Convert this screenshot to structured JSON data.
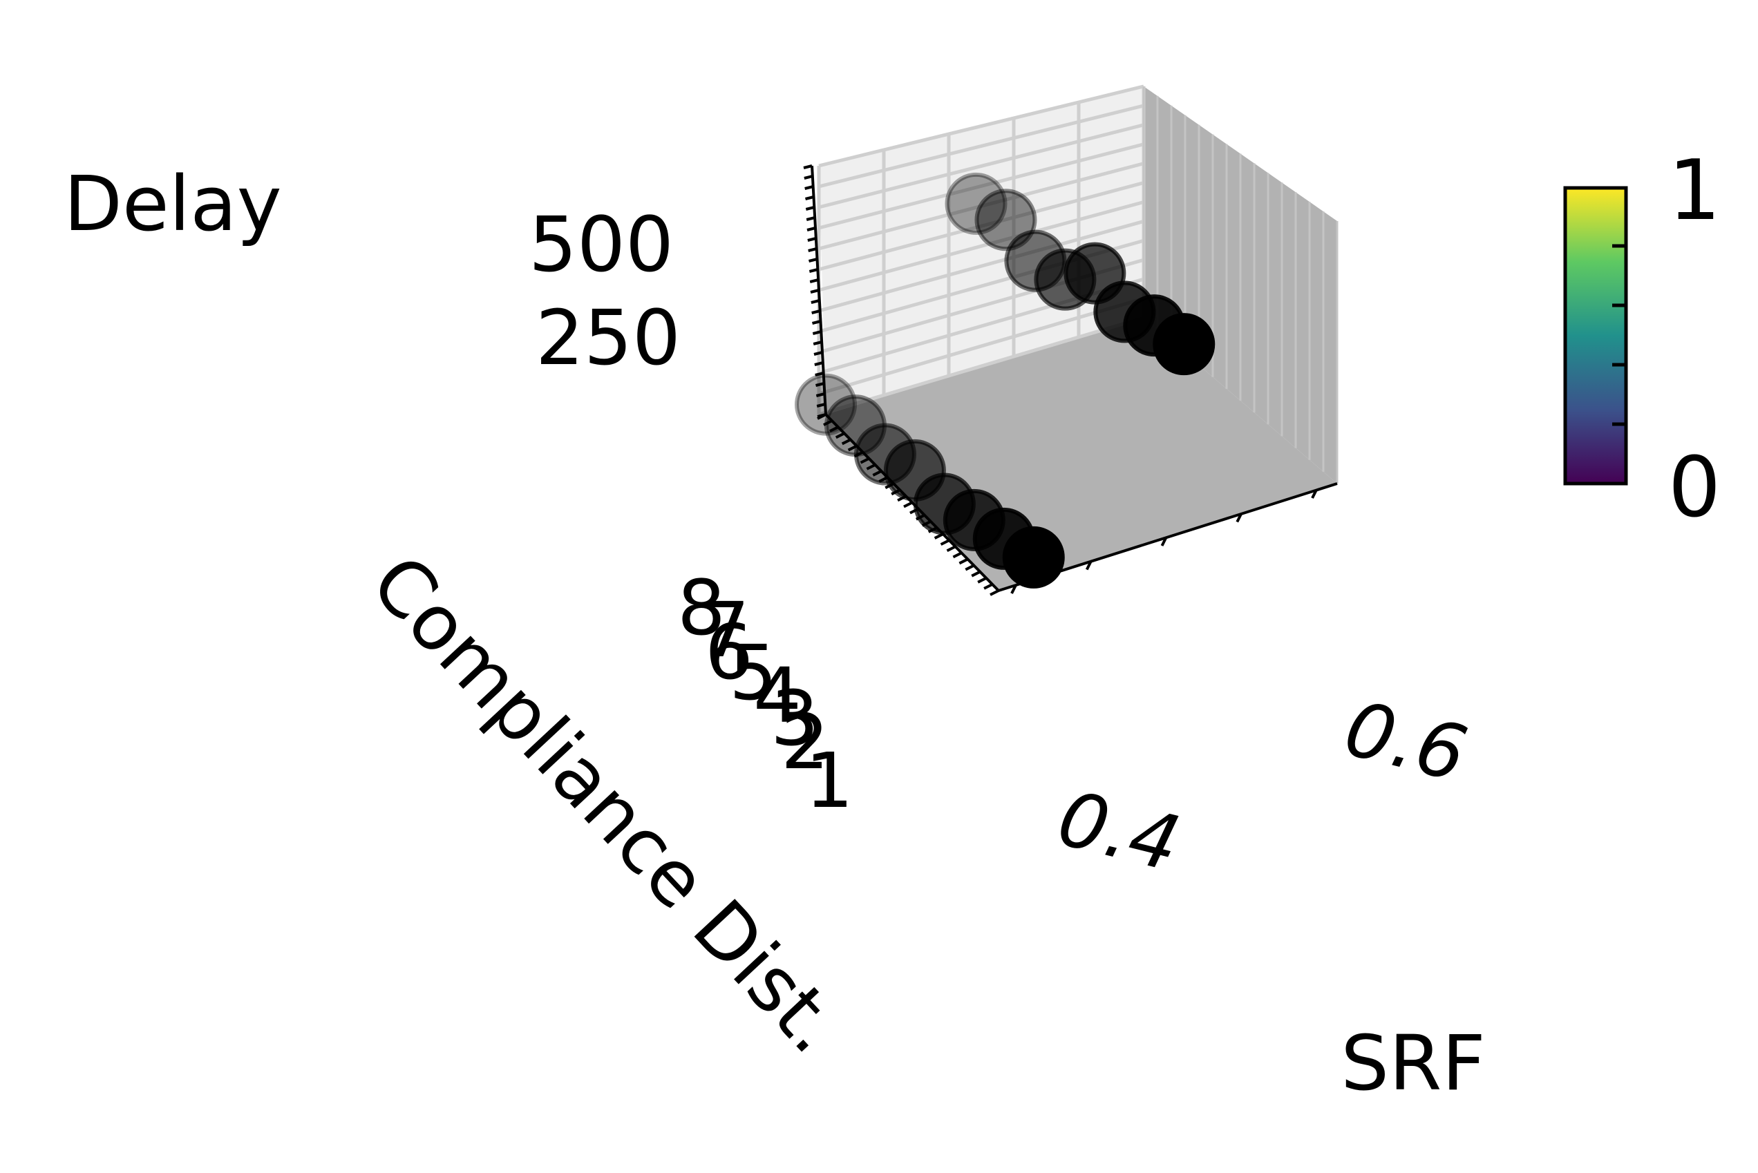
{
  "chart_data": {
    "type": "scatter",
    "projection": "3d",
    "title": "",
    "xlabel": "SRF",
    "ylabel": "Compliance Dist.",
    "zlabel": "Delay",
    "x_ticks": [
      "0.4",
      "0.6"
    ],
    "y_ticks": [
      "8",
      "7",
      "6",
      "5",
      "4",
      "3",
      "2",
      "1"
    ],
    "z_ticks": [
      "500",
      "250"
    ],
    "colorbar": {
      "colormap": "viridis",
      "min_label": "0",
      "max_label": "1",
      "colors": [
        "#440154",
        "#3b528b",
        "#21918c",
        "#5ec962",
        "#fde725"
      ]
    },
    "marker_color": "#000000",
    "pane_color": "#b2b2b2",
    "grid": true,
    "series": [
      {
        "points": [
          {
            "x": 0.3,
            "y": 8,
            "z": 20
          },
          {
            "x": 0.31,
            "y": 7,
            "z": 25
          },
          {
            "x": 0.32,
            "y": 6,
            "z": 15
          },
          {
            "x": 0.33,
            "y": 5,
            "z": 30
          },
          {
            "x": 0.34,
            "y": 4,
            "z": 10
          },
          {
            "x": 0.35,
            "y": 3,
            "z": 25
          },
          {
            "x": 0.36,
            "y": 2,
            "z": 35
          },
          {
            "x": 0.37,
            "y": 1,
            "z": 45
          },
          {
            "x": 0.6,
            "y": 8,
            "z": 330
          },
          {
            "x": 0.61,
            "y": 7,
            "z": 345
          },
          {
            "x": 0.62,
            "y": 6,
            "z": 310
          },
          {
            "x": 0.63,
            "y": 5,
            "z": 320
          },
          {
            "x": 0.64,
            "y": 4,
            "z": 380
          },
          {
            "x": 0.65,
            "y": 3,
            "z": 350
          },
          {
            "x": 0.66,
            "y": 2,
            "z": 370
          },
          {
            "x": 0.67,
            "y": 1,
            "z": 380
          }
        ]
      }
    ]
  }
}
